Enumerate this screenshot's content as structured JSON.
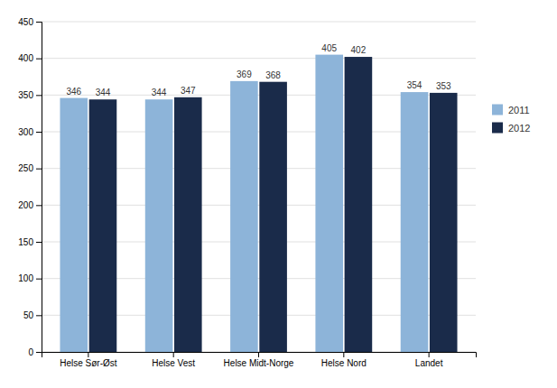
{
  "chart_data": {
    "type": "bar",
    "categories": [
      "Helse Sør-Øst",
      "Helse Vest",
      "Helse Midt-Norge",
      "Helse Nord",
      "Landet"
    ],
    "series": [
      {
        "name": "2011",
        "color": "#8db4d9",
        "values": [
          346,
          344,
          369,
          405,
          354
        ]
      },
      {
        "name": "2012",
        "color": "#1a2b4a",
        "values": [
          344,
          347,
          368,
          402,
          353
        ]
      }
    ],
    "ylim": [
      0,
      450
    ],
    "yticks": [
      0,
      50,
      100,
      150,
      200,
      250,
      300,
      350,
      400,
      450
    ],
    "grid": true,
    "legend": "right",
    "data_labels": true
  }
}
